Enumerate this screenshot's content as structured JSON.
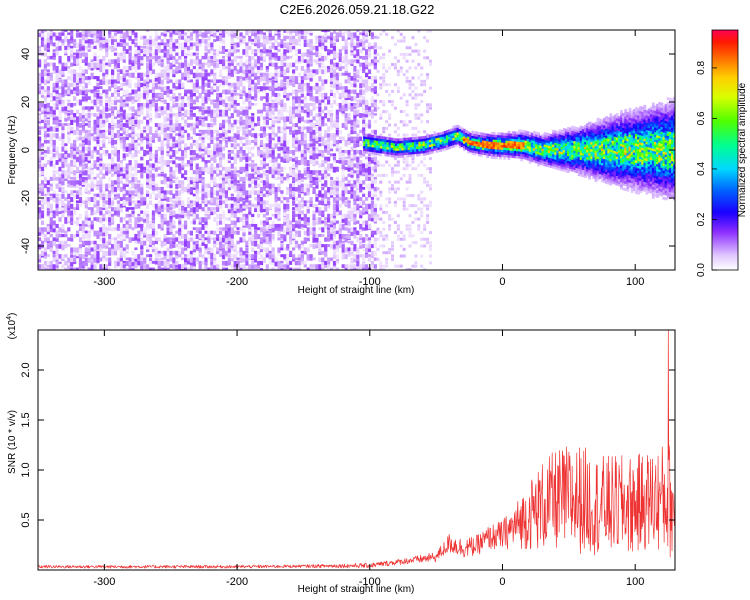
{
  "title": "C2E6.2026.059.21.18.G22",
  "chart_data": [
    {
      "type": "heatmap",
      "name": "spectrogram",
      "xlabel": "Height of straight line (km)",
      "ylabel": "Frequency (Hz)",
      "xlim": [
        -350,
        130
      ],
      "ylim": [
        -50,
        50
      ],
      "xticks": [
        -300,
        -200,
        -100,
        0,
        100
      ],
      "yticks": [
        -40,
        -20,
        0,
        20,
        40
      ],
      "colorbar": {
        "label": "Normalized spectral amplitude",
        "range": [
          0.0,
          0.95
        ],
        "ticks": [
          0.0,
          0.2,
          0.4,
          0.6,
          0.8
        ],
        "tick_labels": [
          "0.0",
          "0.2",
          "0.4",
          "0.6",
          "0.8"
        ]
      },
      "regions": [
        {
          "x_range": [
            -350,
            -95
          ],
          "description": "noise",
          "amplitude_range": [
            0.02,
            0.15
          ]
        },
        {
          "x_range": [
            -95,
            -55
          ],
          "description": "sparse faint noise",
          "amplitude_range": [
            0.0,
            0.05
          ]
        },
        {
          "x_range": [
            -105,
            130
          ],
          "description": "signal band near 0 Hz",
          "amplitude_range": [
            0.1,
            0.95
          ]
        }
      ],
      "signal_centerline": {
        "x": [
          -105,
          -80,
          -60,
          -45,
          -35,
          -25,
          -10,
          0,
          15,
          30,
          50,
          70,
          90,
          110,
          130
        ],
        "y": [
          3,
          1,
          2,
          4,
          6,
          3,
          2,
          2,
          2,
          0,
          0,
          0,
          0,
          0,
          0
        ]
      },
      "signal_width_hz": {
        "x": [
          -105,
          -40,
          0,
          30,
          60,
          90,
          130
        ],
        "half_width": [
          3,
          3,
          4,
          5,
          8,
          12,
          16
        ]
      },
      "peak_x_range": [
        -30,
        15
      ]
    },
    {
      "type": "line",
      "name": "snr",
      "xlabel": "Height of straight line (km)",
      "ylabel": "SNR (10 * v/v)",
      "y_multiplier": "(x10",
      "y_multiplier_exp": "4",
      "y_multiplier_close": ")",
      "xlim": [
        -350,
        130
      ],
      "ylim": [
        0,
        2.4
      ],
      "xticks": [
        -300,
        -200,
        -100,
        0,
        100
      ],
      "yticks": [
        0.5,
        1.0,
        1.5,
        2.0
      ],
      "ytick_labels": [
        "0.5",
        "1.0",
        "1.5",
        "2.0"
      ],
      "series": [
        {
          "name": "SNR",
          "color": "#ee3333",
          "x": [
            -350,
            -300,
            -250,
            -200,
            -150,
            -100,
            -75,
            -50,
            -40,
            -30,
            -20,
            -10,
            0,
            10,
            20,
            30,
            40,
            50,
            60,
            70,
            80,
            90,
            100,
            110,
            120,
            125,
            130
          ],
          "base": [
            0.03,
            0.03,
            0.03,
            0.03,
            0.035,
            0.04,
            0.08,
            0.12,
            0.25,
            0.2,
            0.22,
            0.3,
            0.32,
            0.4,
            0.48,
            0.55,
            0.6,
            0.6,
            0.6,
            0.55,
            0.55,
            0.55,
            0.55,
            0.6,
            0.6,
            0.6,
            0.5
          ],
          "amplitude": [
            0.03,
            0.03,
            0.03,
            0.03,
            0.03,
            0.05,
            0.06,
            0.1,
            0.2,
            0.2,
            0.2,
            0.25,
            0.3,
            0.45,
            0.7,
            0.9,
            1.0,
            1.1,
            1.1,
            1.0,
            1.0,
            1.0,
            1.0,
            1.0,
            1.1,
            1.2,
            1.0
          ]
        }
      ],
      "max_value": 2.4,
      "max_at_x": 125
    }
  ]
}
